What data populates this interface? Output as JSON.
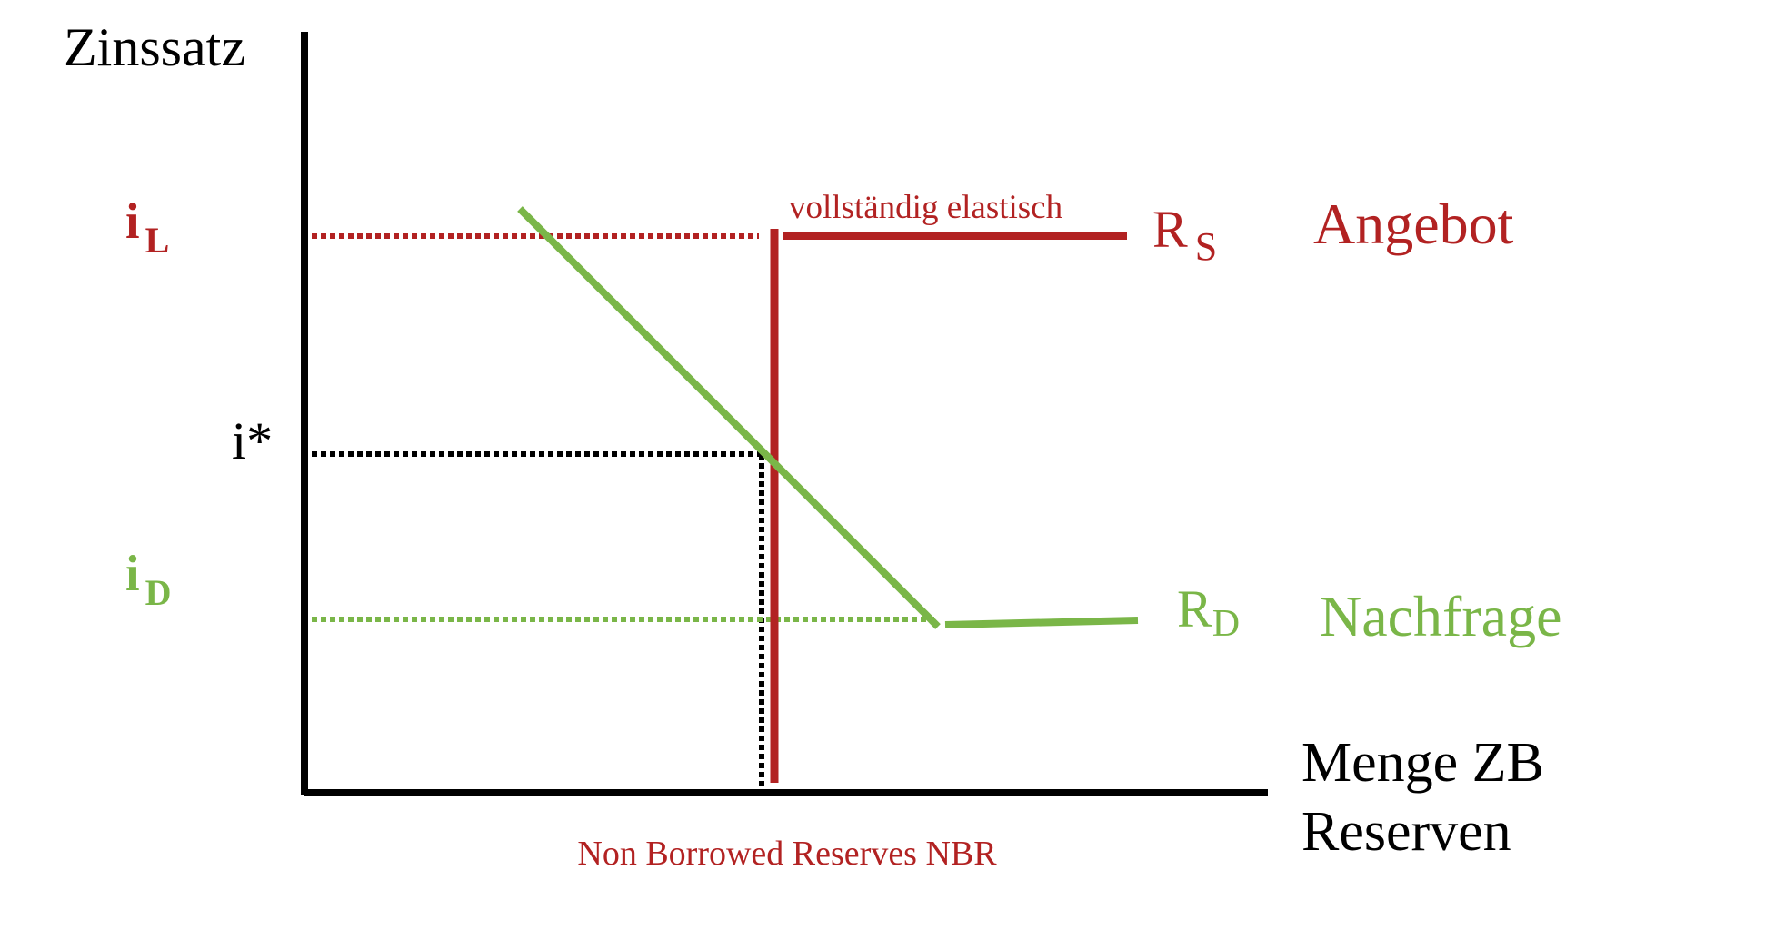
{
  "colors": {
    "supply": "#b22222",
    "demand": "#7ab648",
    "axis": "#000000"
  },
  "y_axis": {
    "label": "Zinssatz"
  },
  "x_axis": {
    "label_line1": "Menge ZB",
    "label_line2": "Reserven"
  },
  "rates": {
    "i_L": {
      "base": "i",
      "sub": "L"
    },
    "i_star": {
      "text": "i*"
    },
    "i_D": {
      "base": "i",
      "sub": "D"
    }
  },
  "supply": {
    "curve_base": "R",
    "curve_sub": "S",
    "legend": "Angebot",
    "annotation": "vollständig elastisch"
  },
  "demand": {
    "curve_base": "R",
    "curve_sub": "D",
    "legend": "Nachfrage"
  },
  "nbr_label": "Non Borrowed Reserves NBR"
}
